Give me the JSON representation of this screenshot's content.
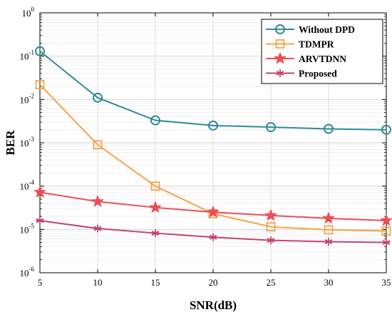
{
  "chart_data": {
    "type": "line",
    "xlabel": "SNR(dB)",
    "ylabel": "BER",
    "xlim": [
      5,
      35
    ],
    "ylim": [
      1e-06,
      1
    ],
    "yscale": "log",
    "x": [
      5,
      10,
      15,
      20,
      25,
      30,
      35
    ],
    "x_ticks": [
      "5",
      "10",
      "15",
      "20",
      "25",
      "30",
      "35"
    ],
    "y_ticks": [
      {
        "base": "10",
        "exp": "-6",
        "value": 1e-06
      },
      {
        "base": "10",
        "exp": "-5",
        "value": 1e-05
      },
      {
        "base": "10",
        "exp": "-4",
        "value": 0.0001
      },
      {
        "base": "10",
        "exp": "-3",
        "value": 0.001
      },
      {
        "base": "10",
        "exp": "-2",
        "value": 0.01
      },
      {
        "base": "10",
        "exp": "-1",
        "value": 0.1
      },
      {
        "base": "10",
        "exp": "0",
        "value": 1
      }
    ],
    "grid": true,
    "legend_position": "top-right",
    "series": [
      {
        "name": "Without DPD",
        "color": "#2e8b96",
        "marker": "circle",
        "values": [
          0.13,
          0.011,
          0.0033,
          0.0025,
          0.0023,
          0.0021,
          0.002
        ]
      },
      {
        "name": "TDMPR",
        "color": "#f5a44a",
        "marker": "square",
        "values": [
          0.022,
          0.0009,
          0.0001,
          2.3e-05,
          1.15e-05,
          9.8e-06,
          9.2e-06
        ]
      },
      {
        "name": "ARVTDNN",
        "color": "#ee4c55",
        "marker": "star",
        "values": [
          7.2e-05,
          4.4e-05,
          3.2e-05,
          2.5e-05,
          2.1e-05,
          1.8e-05,
          1.6e-05
        ]
      },
      {
        "name": "Proposed",
        "color": "#c4446e",
        "marker": "asterisk",
        "values": [
          1.6e-05,
          1.05e-05,
          8.2e-06,
          6.6e-06,
          5.6e-06,
          5.2e-06,
          5e-06
        ]
      }
    ]
  }
}
